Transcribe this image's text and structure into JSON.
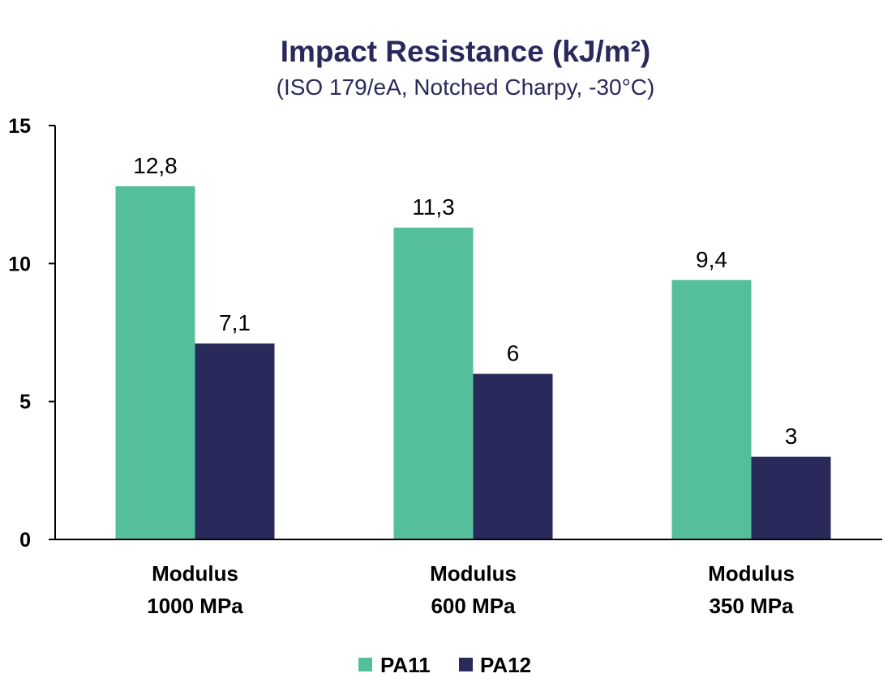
{
  "chart_data": {
    "type": "bar",
    "title": "Impact Resistance (kJ/m²)",
    "subtitle": "(ISO 179/eA, Notched Charpy, -30°C)",
    "categories": [
      [
        "Modulus",
        "1000 MPa"
      ],
      [
        "Modulus",
        "600 MPa"
      ],
      [
        "Modulus",
        "350 MPa"
      ]
    ],
    "series": [
      {
        "name": "PA11",
        "color": "#55bf9b",
        "values": [
          12.8,
          11.3,
          9.4
        ],
        "labels": [
          "12,8",
          "11,3",
          "9,4"
        ]
      },
      {
        "name": "PA12",
        "color": "#29295c",
        "values": [
          7.1,
          6,
          3
        ],
        "labels": [
          "7,1",
          "6",
          "3"
        ]
      }
    ],
    "xlabel": "",
    "ylabel": "",
    "ylim": [
      0,
      15
    ],
    "yticks": [
      0,
      5,
      10,
      15
    ],
    "grid": false,
    "legend_position": "bottom-center"
  },
  "colors": {
    "title": "#29295c",
    "text": "#000000",
    "axis": "#000000"
  }
}
